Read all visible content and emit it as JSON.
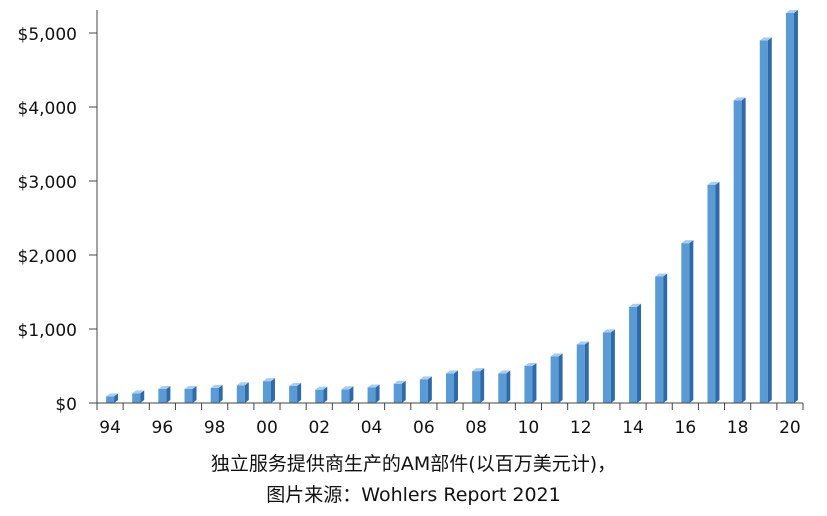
{
  "chart_data": {
    "type": "bar",
    "categories": [
      "94",
      "95",
      "96",
      "97",
      "98",
      "99",
      "00",
      "01",
      "02",
      "03",
      "04",
      "05",
      "06",
      "07",
      "08",
      "09",
      "10",
      "11",
      "12",
      "13",
      "14",
      "15",
      "16",
      "17",
      "18",
      "19",
      "20"
    ],
    "x_tick_labels": [
      "94",
      "96",
      "98",
      "00",
      "02",
      "04",
      "06",
      "08",
      "10",
      "12",
      "14",
      "16",
      "18",
      "20"
    ],
    "values": [
      90,
      130,
      190,
      190,
      205,
      240,
      295,
      230,
      180,
      185,
      210,
      260,
      320,
      400,
      430,
      400,
      500,
      630,
      790,
      955,
      1300,
      1710,
      2160,
      2950,
      4090,
      4900,
      5270
    ],
    "ylim": [
      0,
      5400
    ],
    "y_ticks": [
      0,
      1000,
      2000,
      3000,
      4000,
      5000
    ],
    "y_tick_labels": [
      "$0",
      "$1,000",
      "$2,000",
      "$3,000",
      "$4,000",
      "$5,000"
    ],
    "grid": false,
    "colors": {
      "bar": "#5b9bd5",
      "bar_side": "#2f6aa8",
      "bar_top": "#a9cdf0",
      "axis": "#444444"
    }
  },
  "caption": {
    "line1": "独立服务提供商生产的AM部件(以百万美元计)，",
    "line2": "图片来源：Wohlers Report 2021"
  }
}
